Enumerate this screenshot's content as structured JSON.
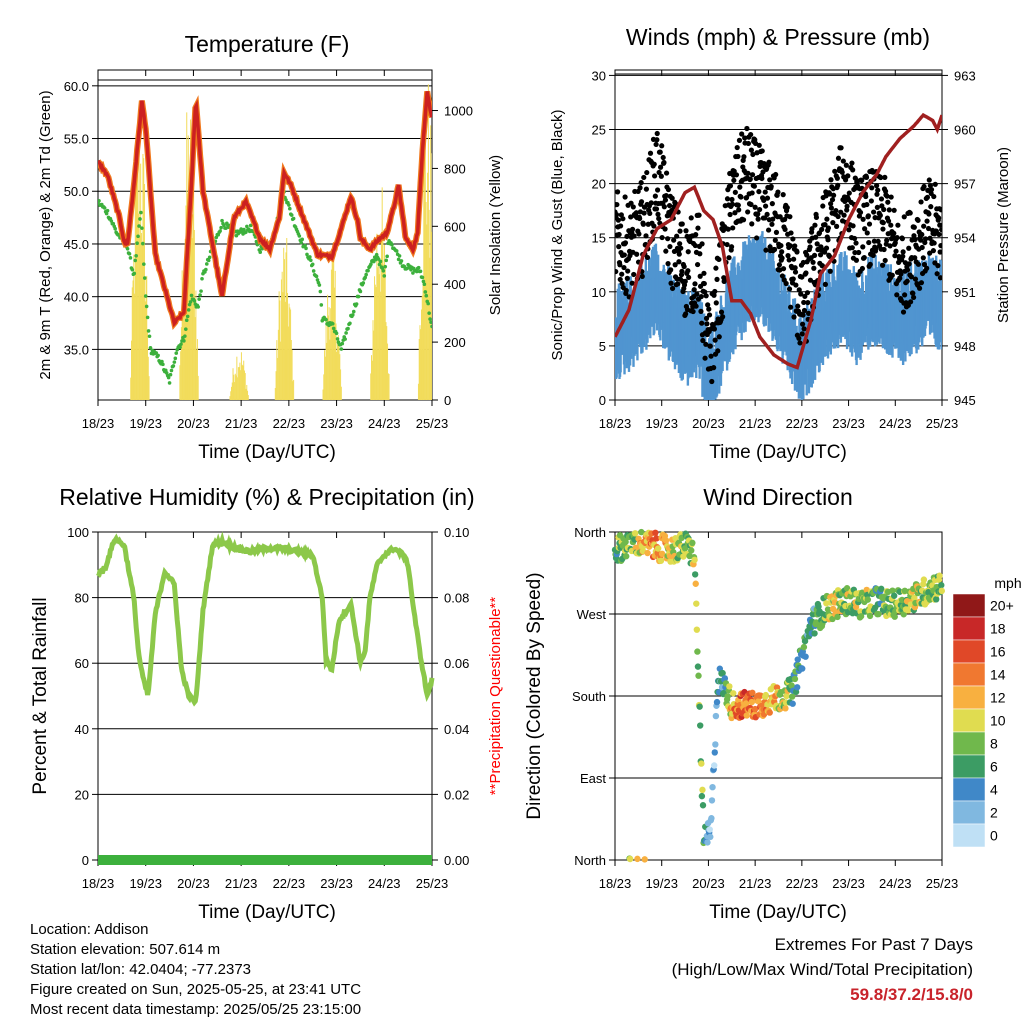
{
  "colors": {
    "temp": "#cc2020",
    "temp_edge": "#f0781e",
    "dew": "#3cb03c",
    "solar": "#f2dc5a",
    "gust": "#000000",
    "wind": "#5095d0",
    "pressure": "#a02020",
    "rh": "#8cc84a",
    "precip": "#3cb03c",
    "note": "#ff0000",
    "extremes": "#c8232b"
  },
  "common": {
    "x_ticks": [
      "18/23",
      "19/23",
      "20/23",
      "21/23",
      "22/23",
      "23/23",
      "24/23",
      "25/23"
    ],
    "x_label": "Time (Day/UTC)"
  },
  "info": {
    "location": "Location: Addison",
    "elevation": "Station elevation: 507.614 m",
    "latlon": "Station lat/lon: 42.0404; -77.2373",
    "created": "Figure created on Sun, 2025-05-25, at 23:41 UTC",
    "recent": "Most recent data timestamp: 2025/05/25 23:15:00"
  },
  "extremes": {
    "line1": "Extremes For Past 7 Days",
    "line2": "(High/Low/Max Wind/Total Precipitation)",
    "values": "59.8/37.2/15.8/0"
  },
  "chart_data": [
    {
      "type": "line",
      "title": "Temperature (F)",
      "xlabel": "Time (Day/UTC)",
      "ylabel": "2m & 9m T (Red, Orange) & 2m Td (Green)",
      "y2label": "Solar Insolation (Yellow)",
      "ylim": [
        30.2,
        61.5
      ],
      "y_ticks": [
        "35.0",
        "40.0",
        "45.0",
        "50.0",
        "55.0",
        "60.0"
      ],
      "y2lim": [
        0,
        1140
      ],
      "y2_ticks": [
        "0",
        "200",
        "400",
        "600",
        "800",
        "1000"
      ],
      "x_range_days": [
        0,
        7
      ],
      "series": [
        {
          "name": "2m T",
          "axis": "left",
          "x": [
            0,
            0.2,
            0.45,
            0.55,
            0.62,
            0.75,
            0.92,
            1.0,
            1.2,
            1.6,
            1.8,
            1.95,
            2.05,
            2.2,
            2.6,
            2.85,
            3.1,
            3.4,
            3.6,
            3.8,
            3.9,
            4.05,
            4.3,
            4.6,
            4.9,
            5.1,
            5.3,
            5.45,
            5.5,
            5.7,
            5.9,
            6.05,
            6.2,
            6.3,
            6.45,
            6.6,
            6.7,
            6.8,
            6.9,
            6.97,
            7.0
          ],
          "y": [
            52.8,
            51.5,
            47.5,
            45.2,
            45.0,
            50.5,
            58.5,
            56.0,
            44.0,
            37.5,
            38.5,
            50.0,
            58.8,
            50.0,
            40.0,
            47.5,
            49.0,
            45.5,
            44.5,
            47.5,
            51.8,
            50.5,
            47.5,
            44.0,
            43.8,
            46.5,
            49.5,
            47.0,
            45.5,
            44.5,
            45.5,
            46.0,
            48.5,
            50.5,
            45.5,
            44.5,
            46.0,
            54.0,
            59.5,
            57.5,
            57.0
          ]
        },
        {
          "name": "2m Td",
          "axis": "left",
          "x": [
            0,
            0.2,
            0.4,
            0.6,
            0.75,
            0.9,
            1.0,
            1.1,
            1.3,
            1.5,
            1.65,
            1.8,
            1.95,
            2.1,
            2.2,
            2.6,
            2.9,
            3.2,
            3.4,
            3.6,
            3.85,
            3.9,
            4.0,
            4.2,
            4.4,
            4.65,
            4.7,
            4.8,
            4.9,
            5.1,
            5.3,
            5.6,
            5.85,
            6.0,
            6.1,
            6.4,
            6.6,
            6.75,
            6.85,
            7.0
          ],
          "y": [
            49.0,
            48.0,
            46.0,
            45.0,
            42.0,
            48.0,
            40.0,
            35.0,
            34.0,
            32.0,
            35.0,
            36.0,
            40.0,
            39.0,
            42.0,
            47.0,
            46.0,
            46.5,
            44.5,
            45.0,
            48.5,
            50.0,
            48.5,
            46.0,
            44.0,
            41.0,
            38.0,
            37.5,
            37.5,
            35.0,
            38.0,
            42.0,
            44.0,
            42.0,
            45.5,
            43.0,
            42.5,
            42.5,
            41.0,
            37.0
          ]
        },
        {
          "name": "Solar Insolation",
          "axis": "right",
          "x": [
            0,
            0.25,
            0.35,
            0.5,
            0.6,
            0.7,
            0.75,
            0.82,
            0.9,
            0.97,
            1.05,
            1.22,
            1.32,
            1.4,
            1.48,
            1.52,
            1.62,
            1.72,
            1.8,
            1.9,
            1.98,
            2.05,
            2.2,
            2.3,
            2.38,
            2.45,
            2.52,
            2.58,
            2.66,
            2.72,
            2.78,
            2.85,
            3.0,
            3.22,
            3.3,
            3.4,
            3.5,
            3.7,
            3.8,
            3.9,
            3.98,
            4.2,
            4.3,
            4.4,
            4.5,
            4.7,
            4.78,
            4.86,
            4.94,
            5.0,
            5.05,
            5.2,
            5.3,
            5.4,
            5.5,
            5.68,
            5.74,
            5.8,
            5.88,
            5.96,
            6.02,
            6.2,
            6.3,
            6.42,
            6.55,
            6.6,
            6.7,
            6.85,
            6.95,
            7.0
          ],
          "y": [
            0,
            0,
            0,
            0,
            0,
            0,
            500,
            900,
            250,
            0,
            0,
            0,
            0,
            0,
            0,
            0,
            0,
            400,
            700,
            1000,
            600,
            0,
            0,
            0,
            0,
            0,
            0,
            0,
            0,
            0,
            0,
            0,
            0,
            0,
            0,
            0,
            0,
            0,
            0,
            0,
            0,
            0,
            0,
            0,
            0,
            0,
            0,
            0,
            0,
            0,
            0,
            0,
            0,
            0,
            0,
            0,
            0,
            0,
            0,
            0,
            0,
            0,
            0,
            0,
            0,
            0,
            0,
            0,
            0,
            0
          ]
        }
      ]
    },
    {
      "type": "scatter",
      "title": "Winds (mph) & Pressure (mb)",
      "xlabel": "Time (Day/UTC)",
      "ylabel": "Sonic/Prop Wind & Gust (Blue, Black)",
      "y2label": "Station Pressure (Maroon)",
      "ylim": [
        0,
        30.5
      ],
      "y_ticks": [
        "0",
        "5",
        "10",
        "15",
        "20",
        "25",
        "30"
      ],
      "y2lim": [
        945,
        963.3
      ],
      "y2_ticks": [
        "945",
        "948",
        "951",
        "954",
        "957",
        "960",
        "963"
      ],
      "series": [
        {
          "name": "Sonic/Prop Wind",
          "axis": "left",
          "x": [
            0,
            0.3,
            0.6,
            0.9,
            1.2,
            1.5,
            1.8,
            2.0,
            2.2,
            2.5,
            2.8,
            3.1,
            3.4,
            3.7,
            4.0,
            4.3,
            4.6,
            4.9,
            5.2,
            5.5,
            5.8,
            6.1,
            6.4,
            6.7,
            7.0
          ],
          "y": [
            6.5,
            7.5,
            9,
            11,
            8,
            6,
            7,
            2,
            5,
            9,
            11,
            12,
            10,
            7,
            4,
            7,
            9,
            10,
            8,
            10,
            9,
            8,
            9,
            10,
            9
          ]
        },
        {
          "name": "Gust",
          "axis": "left",
          "x": [
            0,
            0.3,
            0.6,
            0.9,
            1.2,
            1.5,
            1.8,
            2.0,
            2.2,
            2.5,
            2.8,
            3.1,
            3.4,
            3.7,
            4.0,
            4.3,
            4.6,
            4.9,
            5.2,
            5.5,
            5.8,
            6.1,
            6.4,
            6.7,
            7.0
          ],
          "y": [
            15,
            14,
            16,
            21,
            15,
            12,
            13,
            4,
            9,
            18,
            21,
            19,
            17,
            14,
            8,
            13,
            16,
            20,
            16,
            17,
            16,
            12,
            14,
            16,
            15
          ]
        },
        {
          "name": "Station Pressure",
          "axis": "right",
          "x": [
            0,
            0.3,
            0.6,
            0.9,
            1.2,
            1.5,
            1.7,
            1.9,
            2.1,
            2.3,
            2.5,
            2.7,
            2.9,
            3.1,
            3.4,
            3.7,
            3.9,
            4.2,
            4.4,
            4.7,
            5.0,
            5.3,
            5.6,
            5.8,
            6.1,
            6.4,
            6.6,
            6.8,
            6.9,
            7.0
          ],
          "y": [
            948.5,
            950,
            953,
            954.5,
            955,
            956.5,
            956.8,
            955.5,
            955,
            953.5,
            950.5,
            950.5,
            949.8,
            948.5,
            947.5,
            947.0,
            946.8,
            949.5,
            952,
            953,
            955,
            956.5,
            957.5,
            958.5,
            959.5,
            960.2,
            960.8,
            960.5,
            960.0,
            960.8
          ]
        }
      ]
    },
    {
      "type": "line",
      "title": "Relative Humidity (%) & Precipitation (in)",
      "xlabel": "Time (Day/UTC)",
      "ylabel": "Percent & Total Rainfall",
      "y2label": "**Precipitation Questionable**",
      "ylim": [
        0,
        100
      ],
      "y_ticks": [
        "0",
        "20",
        "40",
        "60",
        "80",
        "100"
      ],
      "y2lim": [
        0,
        0.1
      ],
      "y2_ticks": [
        "0.00",
        "0.02",
        "0.04",
        "0.06",
        "0.08",
        "0.10"
      ],
      "series": [
        {
          "name": "Relative Humidity",
          "axis": "left",
          "x": [
            0,
            0.15,
            0.35,
            0.55,
            0.75,
            0.85,
            0.95,
            1.05,
            1.2,
            1.4,
            1.6,
            1.75,
            1.9,
            2.05,
            2.2,
            2.4,
            2.6,
            2.9,
            3.2,
            3.5,
            3.9,
            4.2,
            4.5,
            4.7,
            4.78,
            4.9,
            5.05,
            5.3,
            5.5,
            5.6,
            5.7,
            5.85,
            6.0,
            6.2,
            6.4,
            6.5,
            6.6,
            6.75,
            6.9,
            7.0
          ],
          "y": [
            87,
            89,
            98,
            96,
            80,
            63,
            55,
            50,
            75,
            88,
            84,
            58,
            50,
            48,
            76,
            96,
            97,
            95,
            94,
            95,
            95,
            94,
            93,
            80,
            61,
            58,
            73,
            78,
            60,
            64,
            80,
            90,
            93,
            95,
            93,
            90,
            78,
            63,
            50,
            55
          ]
        },
        {
          "name": "Total Precipitation",
          "axis": "right",
          "x": [
            0,
            7
          ],
          "y": [
            0,
            0
          ]
        }
      ]
    },
    {
      "type": "scatter",
      "title": "Wind Direction",
      "xlabel": "Time (Day/UTC)",
      "ylabel": "Direction (Colored By Speed)",
      "y_ticks": [
        "North",
        "East",
        "South",
        "West",
        "North"
      ],
      "colorbar_title": "mph",
      "colorbar_labels": [
        "0",
        "2",
        "4",
        "6",
        "8",
        "10",
        "12",
        "14",
        "16",
        "18",
        "20+"
      ],
      "colorbar_colors": [
        "#bfe0f5",
        "#80b8e0",
        "#4088c8",
        "#3c9c64",
        "#70b84c",
        "#e0dc50",
        "#f8b040",
        "#f07830",
        "#e04828",
        "#c82828",
        "#901818"
      ],
      "series": [
        {
          "name": "Direction",
          "x": [
            0,
            0.4,
            0.8,
            1.2,
            1.5,
            1.7,
            1.9,
            2.05,
            2.2,
            2.35,
            2.5,
            2.7,
            3.0,
            3.3,
            3.6,
            3.8,
            4.2,
            4.5,
            4.7,
            5.0,
            5.3,
            5.6,
            5.9,
            6.2,
            6.5,
            6.8,
            7.0
          ],
          "y": [
            340,
            350,
            345,
            340,
            345,
            335,
            20,
            30,
            200,
            190,
            170,
            170,
            170,
            175,
            180,
            185,
            260,
            275,
            280,
            285,
            280,
            285,
            280,
            285,
            290,
            300,
            300
          ],
          "speed": [
            6,
            9,
            14,
            10,
            8,
            9,
            7,
            1,
            3,
            5,
            12,
            15,
            14,
            12,
            10,
            6,
            5,
            8,
            10,
            8,
            9,
            7,
            8,
            9,
            10,
            8,
            8
          ]
        }
      ]
    }
  ]
}
